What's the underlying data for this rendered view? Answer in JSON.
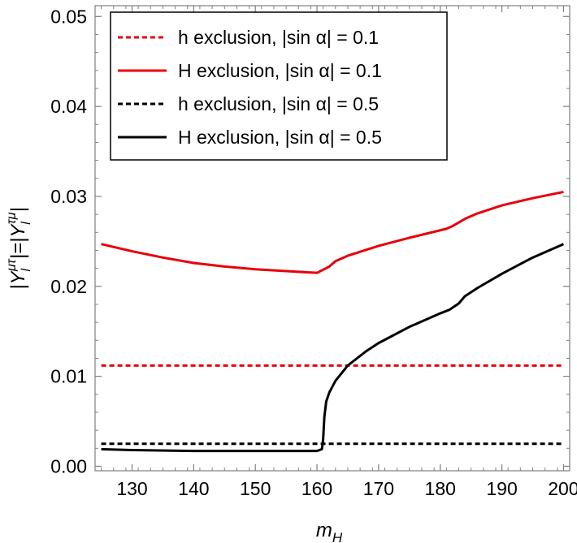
{
  "chart_data": {
    "type": "line",
    "title": "",
    "xlabel": {
      "main": "m",
      "sub": "H"
    },
    "ylabel": {
      "a": "|Y",
      "a_sub": "l",
      "a_sup": "μτ",
      "mid": "|=|Y",
      "b_sub": "l",
      "b_sup": "τμ",
      "end": "|"
    },
    "xlim": [
      124,
      201
    ],
    "ylim": [
      -0.0005,
      0.0512
    ],
    "xticks": [
      130,
      140,
      150,
      160,
      170,
      180,
      190,
      200
    ],
    "xtick_labels": [
      "130",
      "140",
      "150",
      "160",
      "170",
      "180",
      "190",
      "200"
    ],
    "yticks": [
      0.0,
      0.01,
      0.02,
      0.03,
      0.04,
      0.05
    ],
    "ytick_labels": [
      "0.00",
      "0.01",
      "0.02",
      "0.03",
      "0.04",
      "0.05"
    ],
    "legend_position": "top-left",
    "series": [
      {
        "name": "h exclusion, |sin α| = 0.1",
        "color": "#e8000b",
        "style": "dashed",
        "x": [
          125,
          200
        ],
        "y": [
          0.0112,
          0.0112
        ]
      },
      {
        "name": "H exclusion, |sin α| = 0.1",
        "color": "#e8000b",
        "style": "solid",
        "x": [
          125,
          130,
          135,
          140,
          145,
          150,
          155,
          160,
          162,
          163,
          165,
          170,
          175,
          181,
          182,
          184,
          186,
          190,
          195,
          200
        ],
        "y": [
          0.0247,
          0.0239,
          0.0232,
          0.0226,
          0.0222,
          0.0219,
          0.0217,
          0.0215,
          0.0222,
          0.0228,
          0.0234,
          0.0245,
          0.0254,
          0.0264,
          0.0267,
          0.0275,
          0.0281,
          0.029,
          0.0298,
          0.0305
        ]
      },
      {
        "name": "h exclusion, |sin α| = 0.5",
        "color": "#000000",
        "style": "dashed",
        "x": [
          125,
          200
        ],
        "y": [
          0.0025,
          0.0025
        ]
      },
      {
        "name": "H exclusion, |sin α| = 0.5",
        "color": "#000000",
        "style": "solid",
        "x": [
          125,
          130,
          140,
          150,
          160,
          160.8,
          161.0,
          161.2,
          161.5,
          162,
          163,
          165,
          168,
          170,
          175,
          180,
          181.5,
          183,
          184,
          186,
          190,
          195,
          200
        ],
        "y": [
          0.0019,
          0.0018,
          0.0017,
          0.0017,
          0.0017,
          0.0019,
          0.003,
          0.0055,
          0.0072,
          0.0082,
          0.0095,
          0.0112,
          0.0128,
          0.0137,
          0.0155,
          0.017,
          0.0174,
          0.0181,
          0.0189,
          0.0198,
          0.0214,
          0.0232,
          0.0247
        ]
      }
    ]
  }
}
